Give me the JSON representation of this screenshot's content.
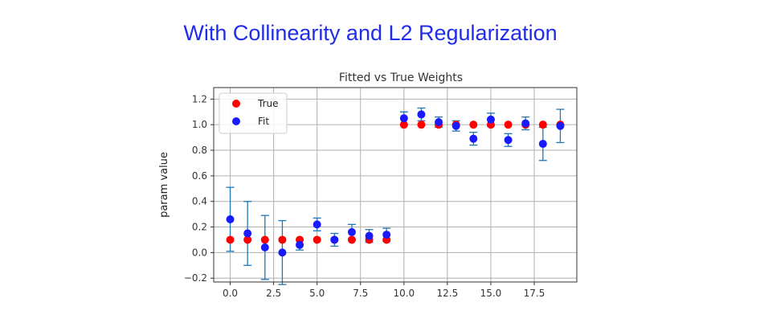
{
  "slide_title": "With Collinearity and L2 Regularization",
  "colors": {
    "title": "#1f2de8",
    "true_points": "#ff0000",
    "fit_points": "#1a1aff",
    "error_bars": "#1f77b4",
    "grid": "#b0b0b0"
  },
  "chart_data": {
    "type": "scatter",
    "title": "Fitted vs True Weights",
    "xlabel": "",
    "ylabel": "param value",
    "xlim": [
      -0.95,
      19.95
    ],
    "ylim": [
      -0.23,
      1.29
    ],
    "grid": true,
    "x_ticks": [
      0,
      2.5,
      5,
      7.5,
      10,
      12.5,
      15,
      17.5
    ],
    "x_tick_labels": [
      "0.0",
      "2.5",
      "5.0",
      "7.5",
      "10.0",
      "12.5",
      "15.0",
      "17.5"
    ],
    "y_ticks": [
      -0.2,
      0.0,
      0.2,
      0.4,
      0.6,
      0.8,
      1.0,
      1.2
    ],
    "y_tick_labels": [
      "−0.2",
      "0.0",
      "0.2",
      "0.4",
      "0.6",
      "0.8",
      "1.0",
      "1.2"
    ],
    "legend": {
      "location": "top-left",
      "entries": [
        "True",
        "Fit"
      ]
    },
    "series": [
      {
        "name": "True",
        "x": [
          0,
          1,
          2,
          3,
          4,
          5,
          6,
          7,
          8,
          9,
          10,
          11,
          12,
          13,
          14,
          15,
          16,
          17,
          18,
          19
        ],
        "y": [
          0.1,
          0.1,
          0.1,
          0.1,
          0.1,
          0.1,
          0.1,
          0.1,
          0.1,
          0.1,
          1.0,
          1.0,
          1.0,
          1.0,
          1.0,
          1.0,
          1.0,
          1.0,
          1.0,
          1.0
        ]
      },
      {
        "name": "Fit",
        "x": [
          0,
          1,
          2,
          3,
          4,
          5,
          6,
          7,
          8,
          9,
          10,
          11,
          12,
          13,
          14,
          15,
          16,
          17,
          18,
          19
        ],
        "y": [
          0.26,
          0.15,
          0.04,
          0.0,
          0.06,
          0.22,
          0.1,
          0.16,
          0.13,
          0.14,
          1.05,
          1.08,
          1.02,
          0.99,
          0.89,
          1.04,
          0.88,
          1.01,
          0.85,
          0.99
        ],
        "error": [
          0.25,
          0.25,
          0.25,
          0.25,
          0.04,
          0.05,
          0.05,
          0.06,
          0.05,
          0.05,
          0.05,
          0.05,
          0.04,
          0.04,
          0.05,
          0.05,
          0.05,
          0.05,
          0.13,
          0.13
        ]
      }
    ]
  }
}
